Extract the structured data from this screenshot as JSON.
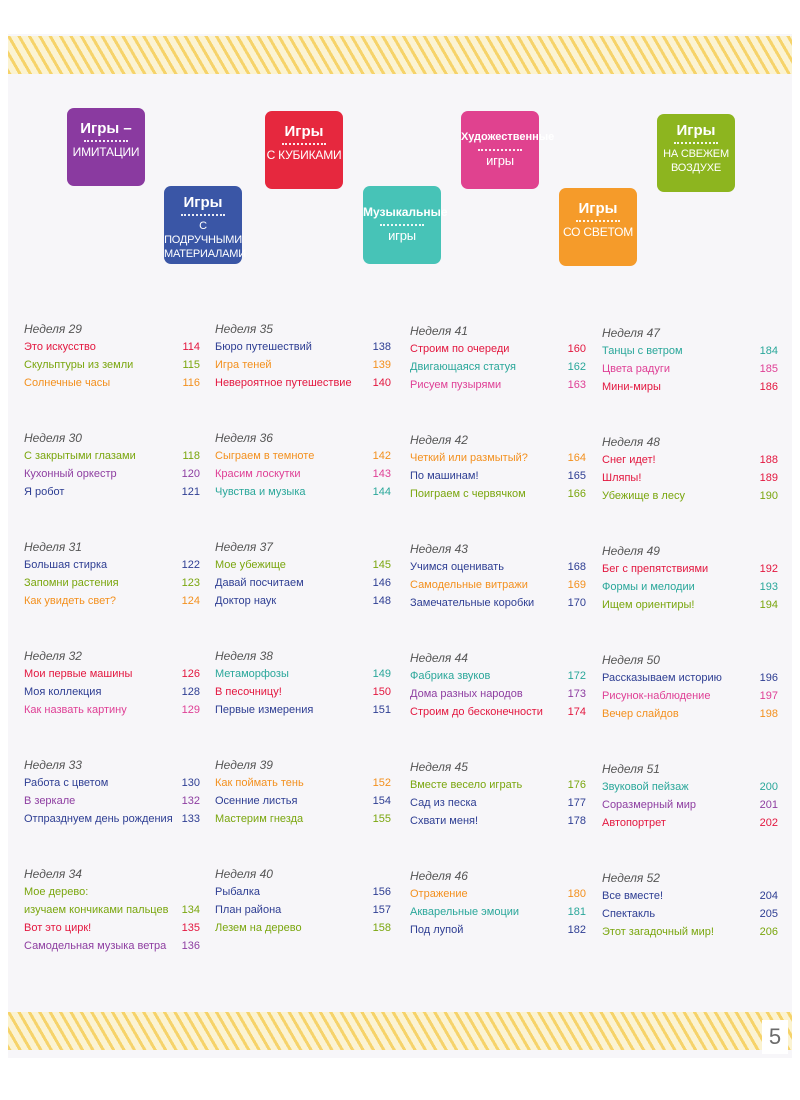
{
  "colors": {
    "red": "#e3173f",
    "green": "#7aa60e",
    "orange": "#f3901e",
    "blue": "#2e3e93",
    "purple": "#8e3ea1",
    "pink": "#df3f95",
    "teal": "#2aa79a",
    "badge_purple": "#8a3aa0",
    "badge_blue": "#3a56a6",
    "badge_red": "#e6283e",
    "badge_teal": "#47c3b7",
    "badge_pink": "#e0428f",
    "badge_orange": "#f59b2a",
    "badge_green": "#8db51f"
  },
  "page_number": "5",
  "badges": [
    {
      "line1": "Игры –",
      "line2": "имитации"
    },
    {
      "line1": "Игры",
      "line2": "с подручными материалами"
    },
    {
      "line1": "Игры",
      "line2": "с кубиками"
    },
    {
      "line1": "Музыкальные",
      "line2": "игры"
    },
    {
      "line1": "Художественные",
      "line2": "игры"
    },
    {
      "line1": "Игры",
      "line2": "со светом"
    },
    {
      "line1": "Игры",
      "line2": "на свежем воздухе"
    }
  ],
  "weeks": [
    {
      "label": "Неделя 29",
      "items": [
        {
          "name": "Это искусство",
          "page": "114",
          "color": "red"
        },
        {
          "name": "Скульптуры из земли",
          "page": "115",
          "color": "green"
        },
        {
          "name": "Солнечные часы",
          "page": "116",
          "color": "orange"
        }
      ]
    },
    {
      "label": "Неделя 30",
      "items": [
        {
          "name": "С закрытыми глазами",
          "page": "118",
          "color": "green"
        },
        {
          "name": "Кухонный оркестр",
          "page": "120",
          "color": "purple"
        },
        {
          "name": "Я робот",
          "page": "121",
          "color": "blue"
        }
      ]
    },
    {
      "label": "Неделя 31",
      "items": [
        {
          "name": "Большая стирка",
          "page": "122",
          "color": "blue"
        },
        {
          "name": "Запомни растения",
          "page": "123",
          "color": "green"
        },
        {
          "name": "Как увидеть свет?",
          "page": "124",
          "color": "orange"
        }
      ]
    },
    {
      "label": "Неделя 32",
      "items": [
        {
          "name": "Мои первые машины",
          "page": "126",
          "color": "red"
        },
        {
          "name": "Моя коллекция",
          "page": "128",
          "color": "blue"
        },
        {
          "name": "Как назвать картину",
          "page": "129",
          "color": "pink"
        }
      ]
    },
    {
      "label": "Неделя 33",
      "items": [
        {
          "name": "Работа с цветом",
          "page": "130",
          "color": "blue"
        },
        {
          "name": "В зеркале",
          "page": "132",
          "color": "purple"
        },
        {
          "name": "Отпразднуем день рождения",
          "page": "133",
          "color": "blue"
        }
      ]
    },
    {
      "label": "Неделя 34",
      "items": [
        {
          "name": "Мое дерево:",
          "page": "",
          "color": "green"
        },
        {
          "name": "изучаем кончиками пальцев",
          "page": "134",
          "color": "green"
        },
        {
          "name": "Вот это цирк!",
          "page": "135",
          "color": "red"
        },
        {
          "name": "Самодельная музыка ветра",
          "page": "136",
          "color": "purple"
        }
      ]
    },
    {
      "label": "Неделя 35",
      "items": [
        {
          "name": "Бюро путешествий",
          "page": "138",
          "color": "blue"
        },
        {
          "name": "Игра теней",
          "page": "139",
          "color": "orange"
        },
        {
          "name": "Невероятное путешествие",
          "page": "140",
          "color": "red"
        }
      ]
    },
    {
      "label": "Неделя 36",
      "items": [
        {
          "name": "Сыграем в темноте",
          "page": "142",
          "color": "orange"
        },
        {
          "name": "Красим лоскутки",
          "page": "143",
          "color": "pink"
        },
        {
          "name": "Чувства и музыка",
          "page": "144",
          "color": "teal"
        }
      ]
    },
    {
      "label": "Неделя 37",
      "items": [
        {
          "name": "Мое убежище",
          "page": "145",
          "color": "green"
        },
        {
          "name": "Давай посчитаем",
          "page": "146",
          "color": "blue"
        },
        {
          "name": "Доктор наук",
          "page": "148",
          "color": "blue"
        }
      ]
    },
    {
      "label": "Неделя 38",
      "items": [
        {
          "name": "Метаморфозы",
          "page": "149",
          "color": "teal"
        },
        {
          "name": "В песочницу!",
          "page": "150",
          "color": "red"
        },
        {
          "name": "Первые измерения",
          "page": "151",
          "color": "blue"
        }
      ]
    },
    {
      "label": "Неделя 39",
      "items": [
        {
          "name": "Как поймать тень",
          "page": "152",
          "color": "orange"
        },
        {
          "name": "Осенние листья",
          "page": "154",
          "color": "blue"
        },
        {
          "name": "Мастерим гнезда",
          "page": "155",
          "color": "green"
        }
      ]
    },
    {
      "label": "Неделя 40",
      "items": [
        {
          "name": "Рыбалка",
          "page": "156",
          "color": "blue"
        },
        {
          "name": "План района",
          "page": "157",
          "color": "blue"
        },
        {
          "name": "Лезем на дерево",
          "page": "158",
          "color": "green"
        }
      ]
    },
    {
      "label": "Неделя 41",
      "items": [
        {
          "name": "Строим по очереди",
          "page": "160",
          "color": "red"
        },
        {
          "name": "Двигающаяся статуя",
          "page": "162",
          "color": "teal"
        },
        {
          "name": "Рисуем пузырями",
          "page": "163",
          "color": "pink"
        }
      ]
    },
    {
      "label": "Неделя 42",
      "items": [
        {
          "name": "Четкий или размытый?",
          "page": "164",
          "color": "orange"
        },
        {
          "name": "По машинам!",
          "page": "165",
          "color": "blue"
        },
        {
          "name": "Поиграем с червячком",
          "page": "166",
          "color": "green"
        }
      ]
    },
    {
      "label": "Неделя 43",
      "items": [
        {
          "name": "Учимся оценивать",
          "page": "168",
          "color": "blue"
        },
        {
          "name": "Самодельные витражи",
          "page": "169",
          "color": "orange"
        },
        {
          "name": "Замечательные коробки",
          "page": "170",
          "color": "blue"
        }
      ]
    },
    {
      "label": "Неделя 44",
      "items": [
        {
          "name": "Фабрика звуков",
          "page": "172",
          "color": "teal"
        },
        {
          "name": "Дома разных народов",
          "page": "173",
          "color": "purple"
        },
        {
          "name": "Строим до бесконечности",
          "page": "174",
          "color": "red"
        }
      ]
    },
    {
      "label": "Неделя 45",
      "items": [
        {
          "name": "Вместе весело играть",
          "page": "176",
          "color": "green"
        },
        {
          "name": "Сад из песка",
          "page": "177",
          "color": "blue"
        },
        {
          "name": "Схвати меня!",
          "page": "178",
          "color": "blue"
        }
      ]
    },
    {
      "label": "Неделя 46",
      "items": [
        {
          "name": "Отражение",
          "page": "180",
          "color": "orange"
        },
        {
          "name": "Акварельные эмоции",
          "page": "181",
          "color": "teal"
        },
        {
          "name": "Под лупой",
          "page": "182",
          "color": "blue"
        }
      ]
    },
    {
      "label": "Неделя 47",
      "items": [
        {
          "name": "Танцы с ветром",
          "page": "184",
          "color": "teal"
        },
        {
          "name": "Цвета радуги",
          "page": "185",
          "color": "pink"
        },
        {
          "name": "Мини-миры",
          "page": "186",
          "color": "red"
        }
      ]
    },
    {
      "label": "Неделя 48",
      "items": [
        {
          "name": "Снег идет!",
          "page": "188",
          "color": "red"
        },
        {
          "name": "Шляпы!",
          "page": "189",
          "color": "red"
        },
        {
          "name": "Убежище в лесу",
          "page": "190",
          "color": "green"
        }
      ]
    },
    {
      "label": "Неделя 49",
      "items": [
        {
          "name": "Бег с препятствиями",
          "page": "192",
          "color": "red"
        },
        {
          "name": "Формы и мелодии",
          "page": "193",
          "color": "teal"
        },
        {
          "name": "Ищем ориентиры!",
          "page": "194",
          "color": "green"
        }
      ]
    },
    {
      "label": "Неделя 50",
      "items": [
        {
          "name": "Рассказываем историю",
          "page": "196",
          "color": "blue"
        },
        {
          "name": "Рисунок-наблюдение",
          "page": "197",
          "color": "pink"
        },
        {
          "name": "Вечер слайдов",
          "page": "198",
          "color": "orange"
        }
      ]
    },
    {
      "label": "Неделя 51",
      "items": [
        {
          "name": "Звуковой пейзаж",
          "page": "200",
          "color": "teal"
        },
        {
          "name": "Соразмерный мир",
          "page": "201",
          "color": "purple"
        },
        {
          "name": "Автопортрет",
          "page": "202",
          "color": "red"
        }
      ]
    },
    {
      "label": "Неделя 52",
      "items": [
        {
          "name": "Все вместе!",
          "page": "204",
          "color": "blue"
        },
        {
          "name": "Спектакль",
          "page": "205",
          "color": "blue"
        },
        {
          "name": "Этот загадочный мир!",
          "page": "206",
          "color": "green"
        }
      ]
    }
  ]
}
